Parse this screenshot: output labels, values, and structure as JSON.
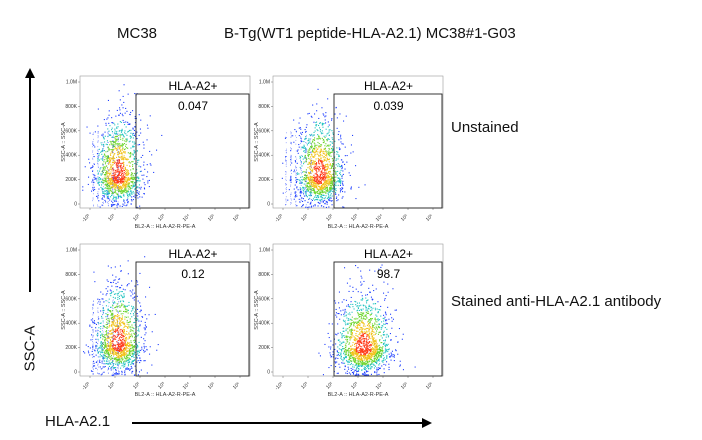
{
  "columns": {
    "left": "MC38",
    "right": "B-Tg(WT1 peptide-HLA-A2.1) MC38#1-G03"
  },
  "rows": {
    "top": "Unstained",
    "bottom": "Stained anti-HLA-A2.1 antibody"
  },
  "axis_titles": {
    "y": "SSC-A",
    "x": "HLA-A2.1"
  },
  "panel_axes": {
    "ylabel": "SSC-A :: SSC-A",
    "xlabel": "BL2-A :: HLA-A2-R-PE-A",
    "yticks": [
      "1.0M",
      "800K",
      "600K",
      "400K",
      "200K",
      "0"
    ],
    "xticks": [
      "-10³",
      "10³",
      "10²",
      "10³",
      "10⁴",
      "10⁵",
      "10⁶"
    ]
  },
  "chart_data": [
    {
      "type": "scatter",
      "panel": "MC38 / Unstained",
      "gate": "HLA-A2+",
      "gate_percent": "0.047",
      "density": "low"
    },
    {
      "type": "scatter",
      "panel": "B-Tg(WT1 peptide-HLA-A2.1) MC38#1-G03 / Unstained",
      "gate": "HLA-A2+",
      "gate_percent": "0.039",
      "density": "low"
    },
    {
      "type": "scatter",
      "panel": "MC38 / Stained anti-HLA-A2.1 antibody",
      "gate": "HLA-A2+",
      "gate_percent": "0.12",
      "density": "low"
    },
    {
      "type": "scatter",
      "panel": "B-Tg(WT1 peptide-HLA-A2.1) MC38#1-G03 / Stained anti-HLA-A2.1 antibody",
      "gate": "HLA-A2+",
      "gate_percent": "98.7",
      "density": "shifted-positive"
    }
  ],
  "colors": {
    "density_low": "#1f3fff",
    "density_mid": "#22c3c0",
    "density_high": "#6bd42b",
    "density_peak": "#ff3b1a",
    "arrow": "#000000"
  }
}
